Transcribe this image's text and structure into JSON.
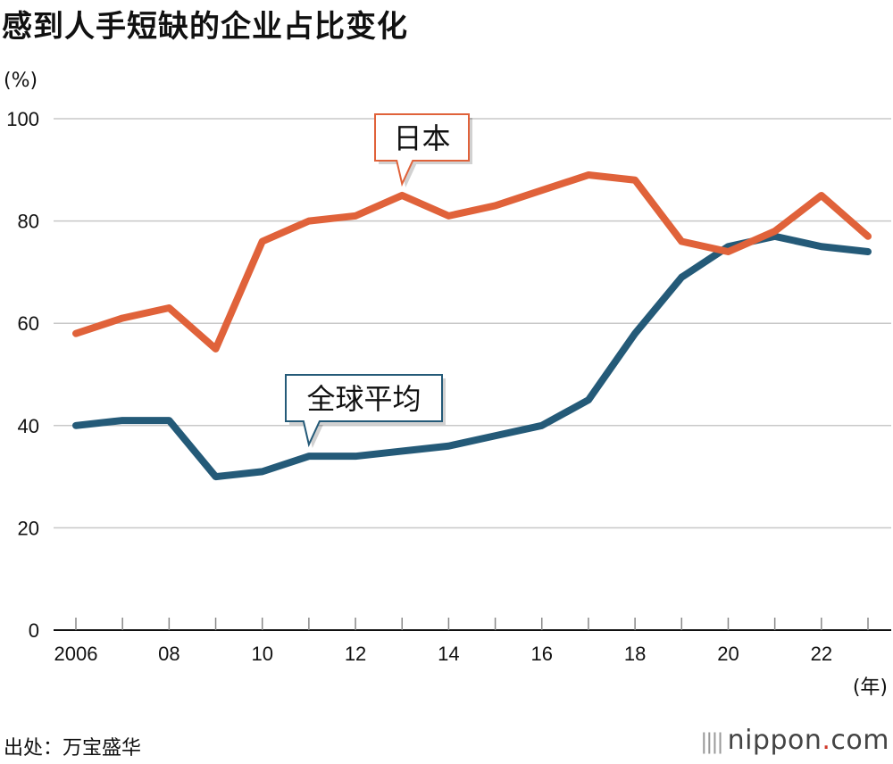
{
  "title": "感到人手短缺的企业占比变化",
  "y_unit": "(%)",
  "x_unit": "(年)",
  "source": "出处：万宝盛华",
  "logo": {
    "name": "nippon",
    "dot": ".",
    "tld": "com"
  },
  "chart_data": {
    "type": "line",
    "title": "感到人手短缺的企业占比变化",
    "ylabel": "(%)",
    "xlabel": "(年)",
    "ylim": [
      0,
      100
    ],
    "yticks": [
      0,
      20,
      40,
      60,
      80,
      100
    ],
    "x": [
      2006,
      2007,
      2008,
      2009,
      2010,
      2011,
      2012,
      2013,
      2014,
      2015,
      2016,
      2017,
      2018,
      2019,
      2020,
      2021,
      2022,
      2023
    ],
    "xtick_labels": [
      {
        "value": 2006,
        "label": "2006"
      },
      {
        "value": 2008,
        "label": "08"
      },
      {
        "value": 2010,
        "label": "10"
      },
      {
        "value": 2012,
        "label": "12"
      },
      {
        "value": 2014,
        "label": "14"
      },
      {
        "value": 2016,
        "label": "16"
      },
      {
        "value": 2018,
        "label": "18"
      },
      {
        "value": 2020,
        "label": "20"
      },
      {
        "value": 2022,
        "label": "22"
      }
    ],
    "grid": true,
    "series": [
      {
        "name": "日本",
        "color": "#e0623a",
        "values": [
          58,
          61,
          63,
          55,
          76,
          80,
          81,
          85,
          81,
          83,
          86,
          89,
          88,
          76,
          74,
          78,
          85,
          77
        ],
        "label_anchor_year": 2013
      },
      {
        "name": "全球平均",
        "color": "#245a78",
        "values": [
          40,
          41,
          41,
          30,
          31,
          34,
          34,
          35,
          36,
          38,
          40,
          45,
          58,
          69,
          75,
          77,
          75,
          74
        ],
        "label_anchor_year": 2011
      }
    ]
  }
}
